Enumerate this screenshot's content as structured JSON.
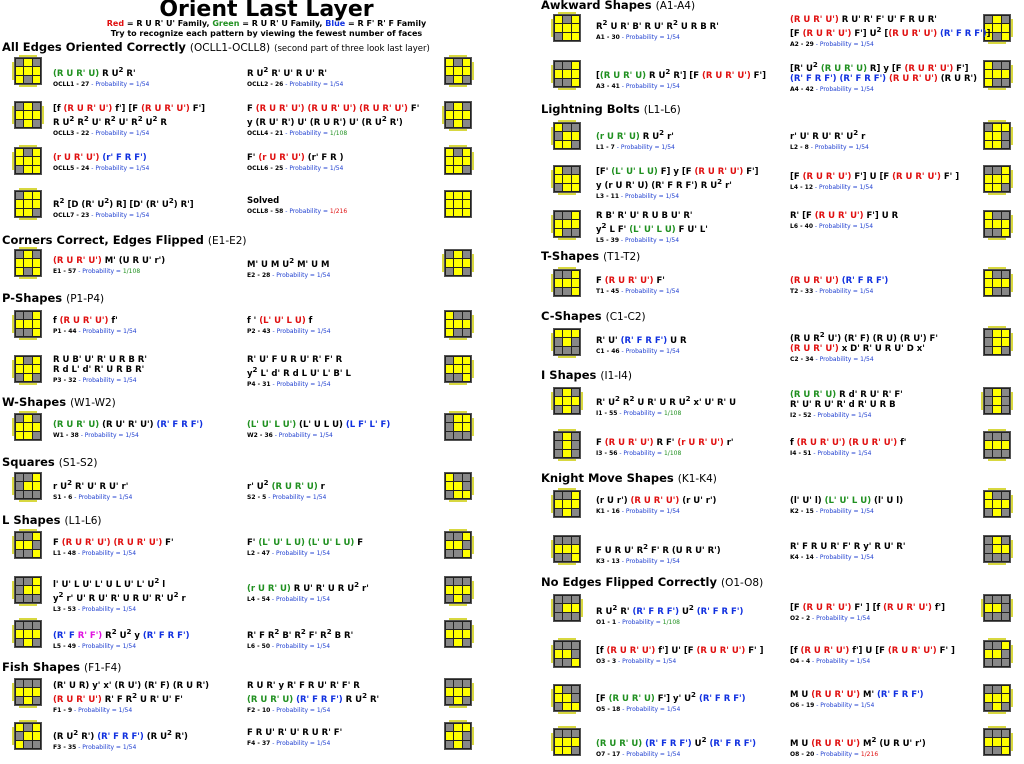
{
  "title": "Orient Last Layer",
  "legend": {
    "red": "Red",
    "red_text": " = R U R' U' Family,",
    "green": "Green",
    "green_text": " = R U R' U Family,",
    "blue": "Blue",
    "blue_text": " = R F' R' F Family"
  },
  "subtitle": "Try to recognize each pattern by viewing the fewest number of faces",
  "sections": {
    "oll": {
      "name": "All Edges Oriented Correctly",
      "tag": "(OCLL1-OCLL8)",
      "note": "(second part of three look last layer)"
    },
    "e": {
      "name": "Corners Correct, Edges Flipped",
      "tag": "(E1-E2)"
    },
    "p": {
      "name": "P-Shapes",
      "tag": "(P1-P4)"
    },
    "w": {
      "name": "W-Shapes",
      "tag": "(W1-W2)"
    },
    "s": {
      "name": "Squares",
      "tag": "(S1-S2)"
    },
    "l": {
      "name": "L Shapes",
      "tag": "(L1-L6)"
    },
    "f": {
      "name": "Fish Shapes",
      "tag": "(F1-F4)"
    },
    "a": {
      "name": "Awkward Shapes",
      "tag": "(A1-A4)"
    },
    "lb": {
      "name": "Lightning Bolts",
      "tag": "(L1-L6)"
    },
    "t": {
      "name": "T-Shapes",
      "tag": "(T1-T2)"
    },
    "c": {
      "name": "C-Shapes",
      "tag": "(C1-C2)"
    },
    "i": {
      "name": "I Shapes",
      "tag": "(I1-I4)"
    },
    "k": {
      "name": "Knight Move Shapes",
      "tag": "(K1-K4)"
    },
    "o": {
      "name": "No Edges Flipped Correctly",
      "tag": "(O1-O8)"
    }
  },
  "probability_label": "Probability = ",
  "probability_values": [
    "1/54",
    "1/108",
    "1/216"
  ],
  "entry_ids": {
    "ocll1": "OCLL1 - 27",
    "ocll2": "OCLL2 - 26",
    "ocll3": "OCLL3 - 22",
    "ocll4": "OCLL4 - 21",
    "ocll5": "OCLL5 - 24",
    "ocll6": "OCLL6 - 25",
    "ocll7": "OCLL7 - 23",
    "ocll8": "OCLL8 - 58",
    "e1": "E1 - 57",
    "e2": "E2 - 28",
    "p1": "P1 - 44",
    "p2": "P2 - 43",
    "p3": "P3 - 32",
    "p4": "P4 - 31",
    "w1": "W1 - 38",
    "w2": "W2 - 36",
    "s1": "S1 - 6",
    "s2": "S2 - 5",
    "l1": "L1 - 48",
    "l2": "L2 - 47",
    "l3": "L3 - 53",
    "l4": "L4 - 54",
    "l5": "L5 - 49",
    "l6": "L6 - 50",
    "f1": "F1 - 9",
    "f2": "F2 - 10",
    "f3": "F3 - 35",
    "f4": "F4 - 37",
    "a1": "A1 - 30",
    "a2": "A2 - 29",
    "a3": "A3 - 41",
    "a4": "A4 - 42",
    "lb1": "L1 - 7",
    "lb2": "L2 - 8",
    "lb3": "L3 - 11",
    "lb4": "L4 - 12",
    "lb5": "L5 - 39",
    "lb6": "L6 - 40",
    "t1": "T1 - 45",
    "t2": "T2 - 33",
    "c1": "C1 - 46",
    "c2": "C2 - 34",
    "i1": "I1 - 55",
    "i2": "I2 - 52",
    "i3": "I3 - 56",
    "i4": "I4 - 51",
    "k1": "K1 - 16",
    "k2": "K2 - 15",
    "k3": "K3 - 13",
    "k4": "K4 - 14",
    "o1": "O1 - 1",
    "o2": "O2 - 2",
    "o3": "O3 - 3",
    "o4": "O4 - 4",
    "o5": "O5 - 18",
    "o6": "O6 - 19",
    "o7": "O7 - 17",
    "o8": "O8 - 20"
  },
  "solved_label": "Solved",
  "colors": {
    "yellow": "#ffff00",
    "gray": "#888888",
    "red": "#e01010",
    "green": "#209020",
    "blue": "#1030e0",
    "probability": "#2040d0"
  }
}
